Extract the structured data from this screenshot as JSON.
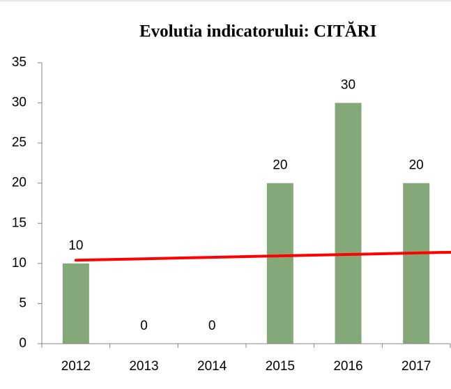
{
  "chart_data": {
    "type": "bar",
    "title": "Evolutia indicatorului: CITĂRI",
    "categories": [
      "2012",
      "2013",
      "2014",
      "2015",
      "2016",
      "2017"
    ],
    "values": [
      10,
      0,
      0,
      20,
      30,
      20
    ],
    "color": "#84a877",
    "ylim": [
      0,
      35
    ],
    "yticks": [
      0,
      5,
      10,
      15,
      20,
      25,
      30,
      35
    ],
    "grid": false,
    "reference_line": {
      "color": "#ff0000",
      "values": [
        10.4,
        10.58,
        10.76,
        10.94,
        11.12,
        11.3
      ]
    }
  }
}
